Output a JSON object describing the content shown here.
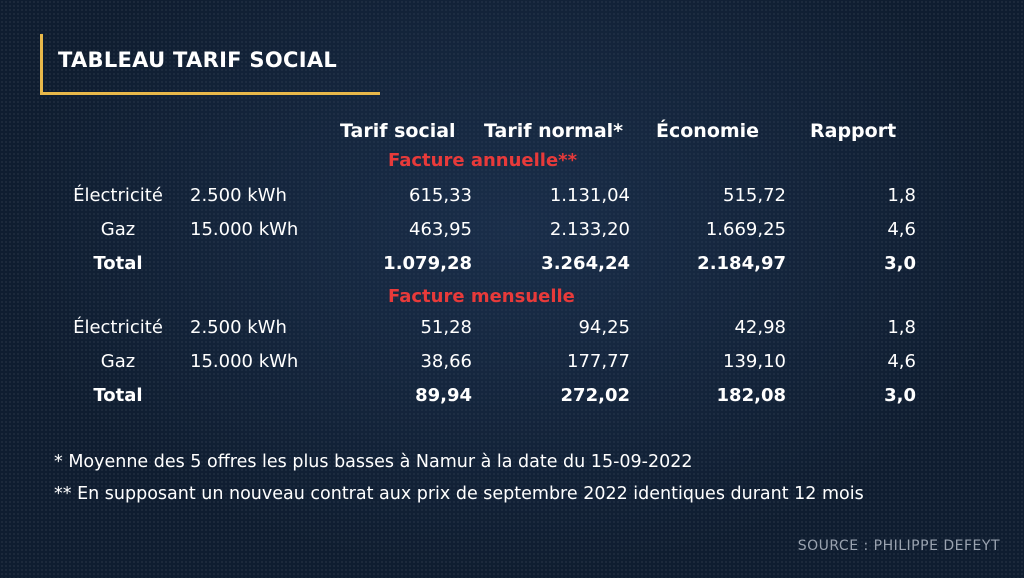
{
  "title": "TABLEAU TARIF SOCIAL",
  "headers": [
    "Tarif social",
    "Tarif normal*",
    "Économie",
    "Rapport"
  ],
  "sections": [
    {
      "heading": "Facture annuelle**",
      "rows": [
        {
          "label": "Électricité",
          "qty": "2.500 kWh",
          "values": [
            "615,33",
            "1.131,04",
            "515,72",
            "1,8"
          ]
        },
        {
          "label": "Gaz",
          "qty": "15.000 kWh",
          "values": [
            "463,95",
            "2.133,20",
            "1.669,25",
            "4,6"
          ]
        },
        {
          "label": "Total",
          "qty": "",
          "values": [
            "1.079,28",
            "3.264,24",
            "2.184,97",
            "3,0"
          ]
        }
      ]
    },
    {
      "heading": "Facture mensuelle",
      "rows": [
        {
          "label": "Électricité",
          "qty": "2.500 kWh",
          "values": [
            "51,28",
            "94,25",
            "42,98",
            "1,8"
          ]
        },
        {
          "label": "Gaz",
          "qty": "15.000 kWh",
          "values": [
            "38,66",
            "177,77",
            "139,10",
            "4,6"
          ]
        },
        {
          "label": "Total",
          "qty": "",
          "values": [
            "89,94",
            "272,02",
            "182,08",
            "3,0"
          ]
        }
      ]
    }
  ],
  "notes": [
    "* Moyenne des 5 offres les plus basses à Namur à la date du 15-09-2022",
    "** En supposant un nouveau contrat aux prix de septembre 2022 identiques durant 12 mois"
  ],
  "source": "SOURCE : PHILIPPE DEFEYT",
  "colors": {
    "accent": "#e8b84a",
    "section": "#e83a3a",
    "background": "#0f1d30"
  }
}
